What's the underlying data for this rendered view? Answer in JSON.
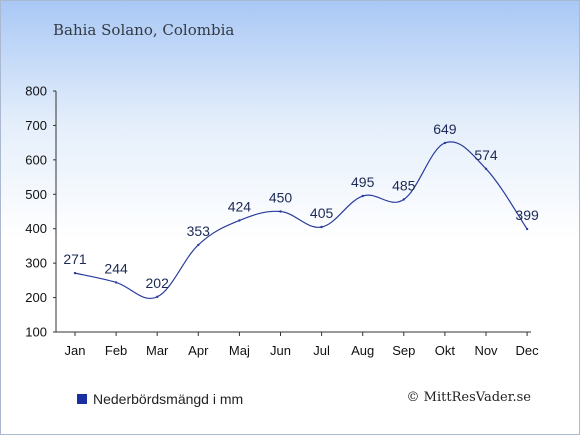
{
  "header": {
    "title": "Bahia Solano, Colombia"
  },
  "legend": {
    "label": "Nederbördsmängd i mm",
    "color": "#1a2fa0"
  },
  "footer": {
    "copyright": "© MittResVader.se"
  },
  "colors": {
    "line": "#2a3c9c",
    "axis": "#333333"
  },
  "chart_data": {
    "type": "line",
    "categories": [
      "Jan",
      "Feb",
      "Mar",
      "Apr",
      "Maj",
      "Jun",
      "Jul",
      "Aug",
      "Sep",
      "Okt",
      "Nov",
      "Dec"
    ],
    "series": [
      {
        "name": "Nederbördsmängd i mm",
        "values": [
          271,
          244,
          202,
          353,
          424,
          450,
          405,
          495,
          485,
          649,
          574,
          399
        ]
      }
    ],
    "yticks": [
      100,
      200,
      300,
      400,
      500,
      600,
      700,
      800
    ],
    "ylim": [
      100,
      800
    ],
    "grid": false,
    "legend_position": "bottom-left"
  }
}
